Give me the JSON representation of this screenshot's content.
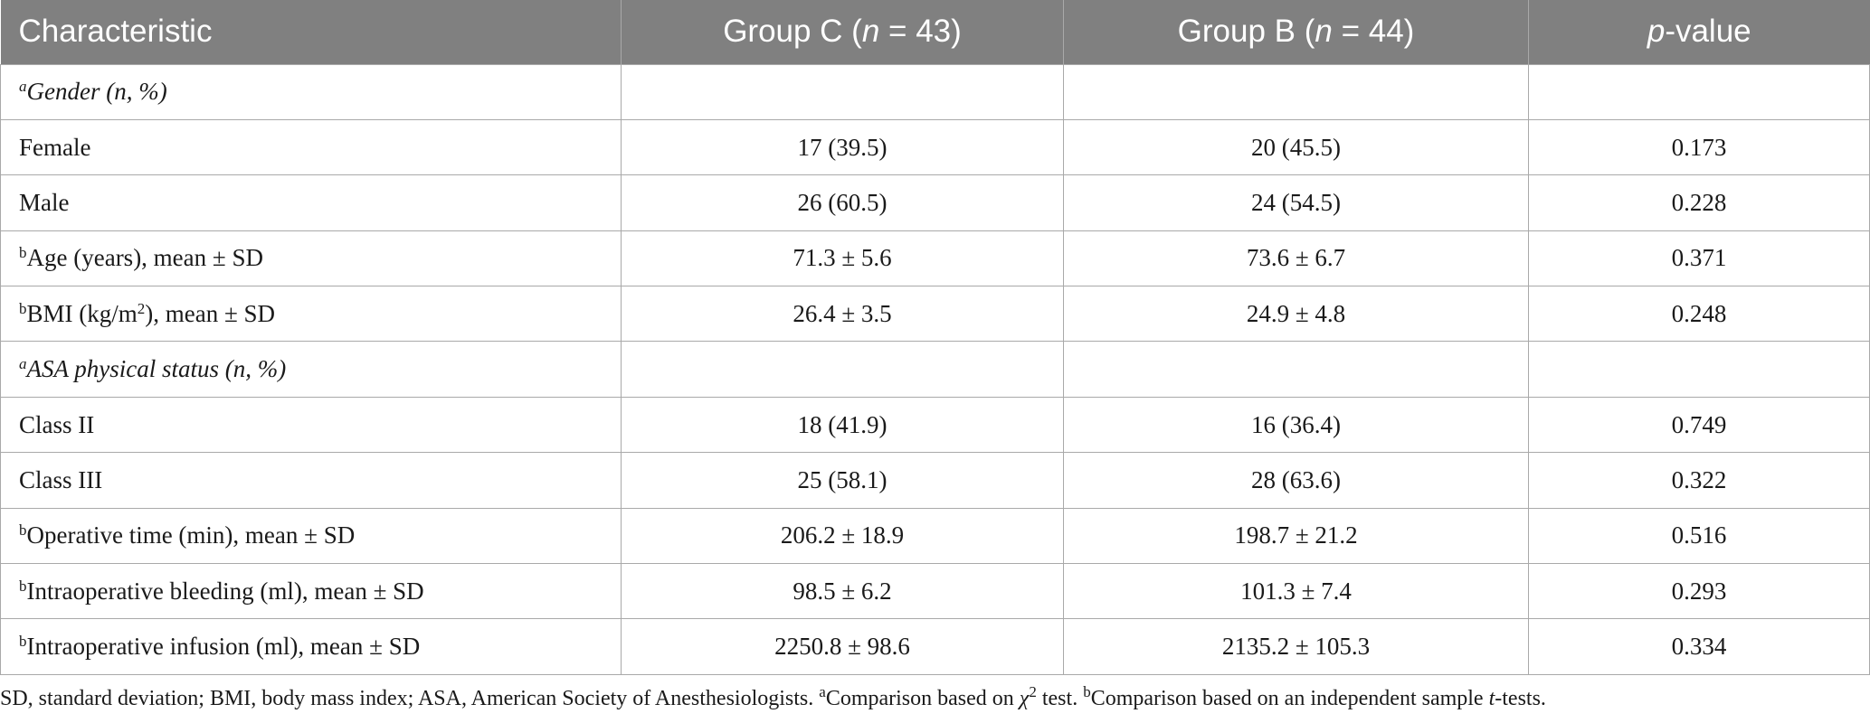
{
  "header": {
    "col1": "Characteristic",
    "col2_prefix": "Group C (",
    "col2_n": "n",
    "col2_suffix": " = 43)",
    "col3_prefix": "Group B (",
    "col3_n": "n",
    "col3_suffix": " = 44)",
    "col4_p": "p",
    "col4_suffix": "-value"
  },
  "rows": [
    {
      "sup": "a",
      "label": "Gender (n, %)",
      "c": "",
      "b": "",
      "p": ""
    },
    {
      "sup": "",
      "label": "Female",
      "c": "17 (39.5)",
      "b": "20 (45.5)",
      "p": "0.173"
    },
    {
      "sup": "",
      "label": "Male",
      "c": "26 (60.5)",
      "b": "24 (54.5)",
      "p": "0.228"
    },
    {
      "sup": "b",
      "label": "Age (years), mean ± SD",
      "c": "71.3 ± 5.6",
      "b": "73.6 ± 6.7",
      "p": "0.371"
    },
    {
      "sup": "b",
      "label_pre": "BMI (kg/m",
      "label_sup": "2",
      "label_post": "), mean ± SD",
      "c": "26.4 ± 3.5",
      "b": "24.9 ± 4.8",
      "p": "0.248"
    },
    {
      "sup": "a",
      "label": "ASA physical status (n, %)",
      "c": "",
      "b": "",
      "p": ""
    },
    {
      "sup": "",
      "label": "Class II",
      "c": "18 (41.9)",
      "b": "16 (36.4)",
      "p": "0.749"
    },
    {
      "sup": "",
      "label": "Class III",
      "c": "25 (58.1)",
      "b": "28 (63.6)",
      "p": "0.322"
    },
    {
      "sup": "b",
      "label": "Operative time (min), mean ± SD",
      "c": "206.2 ± 18.9",
      "b": "198.7 ± 21.2",
      "p": "0.516"
    },
    {
      "sup": "b",
      "label": "Intraoperative bleeding (ml), mean ± SD",
      "c": "98.5 ± 6.2",
      "b": "101.3 ± 7.4",
      "p": "0.293"
    },
    {
      "sup": "b",
      "label": "Intraoperative infusion (ml), mean ± SD",
      "c": "2250.8 ± 98.6",
      "b": "2135.2 ± 105.3",
      "p": "0.334"
    }
  ],
  "footnote": {
    "part1": "SD, standard deviation; BMI, body mass index; ASA, American Society of Anesthesiologists. ",
    "sup_a": "a",
    "part2": "Comparison based on ",
    "chi": "χ",
    "chi_sup": "2",
    "part3": " test. ",
    "sup_b": "b",
    "part4": "Comparison based on an independent sample ",
    "t": "t",
    "part5": "-tests."
  }
}
